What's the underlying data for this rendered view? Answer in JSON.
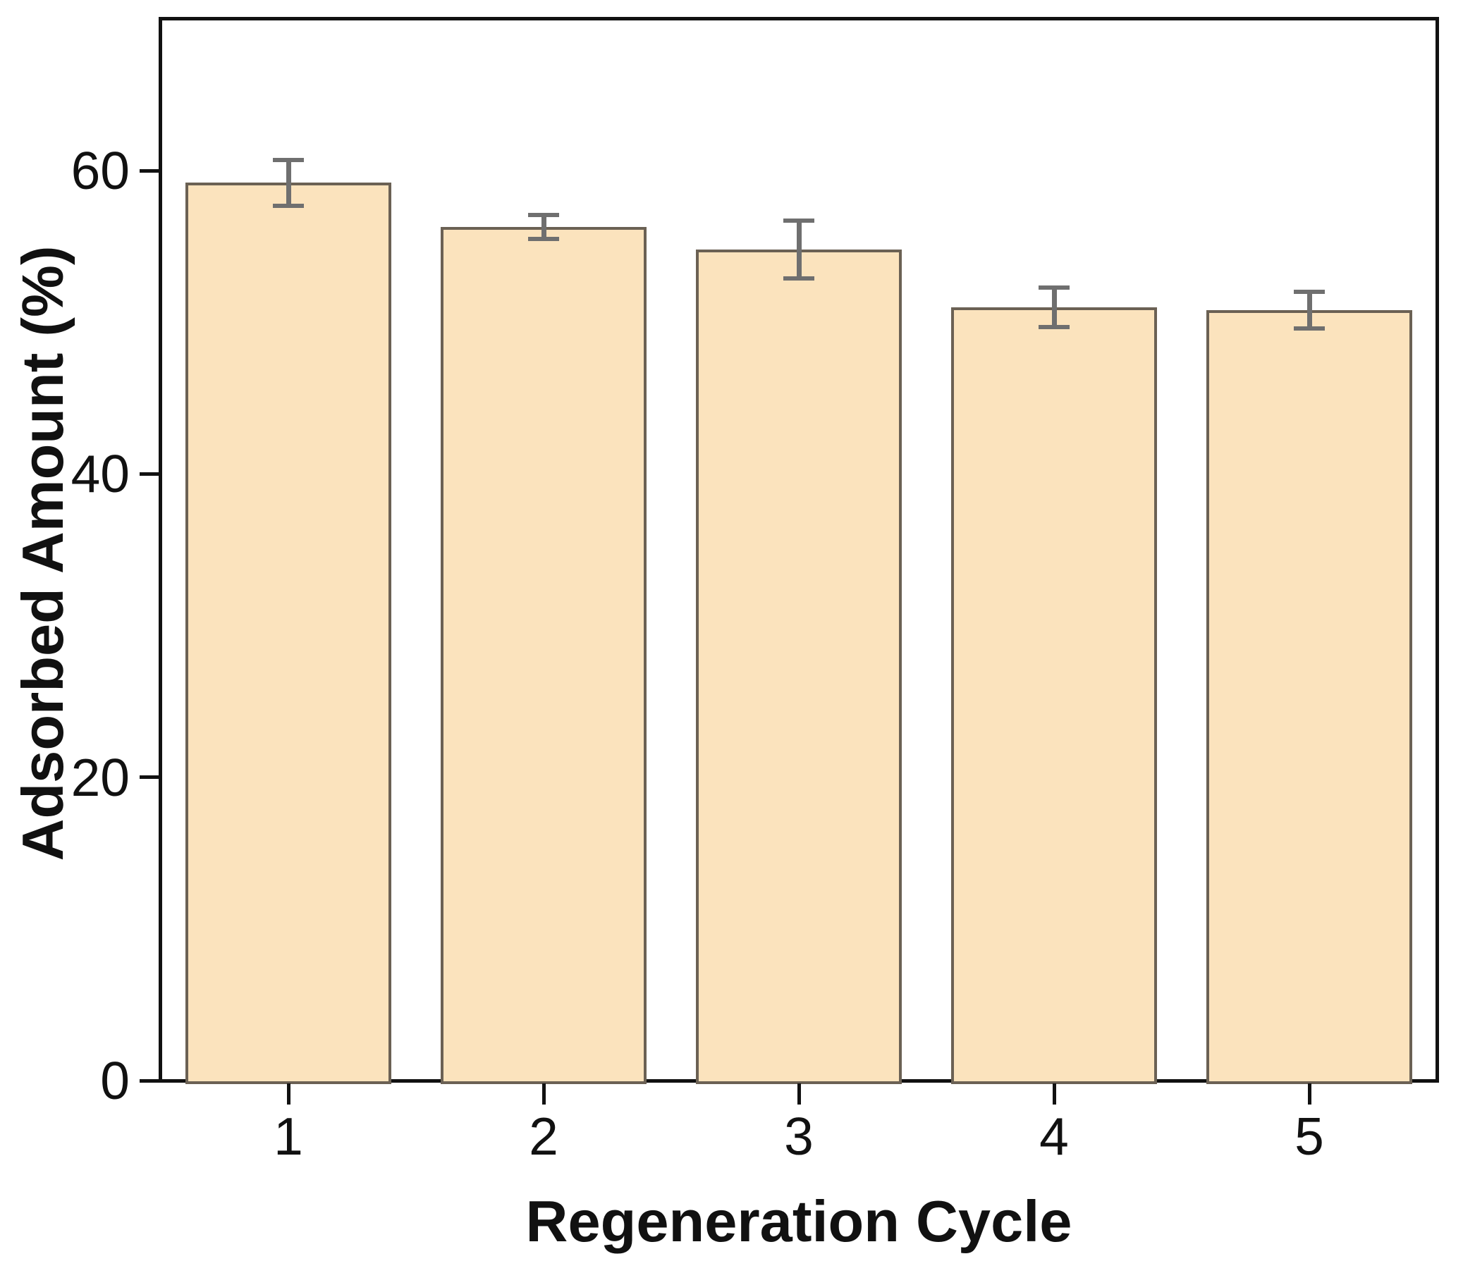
{
  "figure": {
    "background_color": "#ffffff",
    "axis_color": "#111111",
    "text_color": "#111111"
  },
  "chart_data": {
    "type": "bar",
    "title": "",
    "xlabel": "Regeneration Cycle",
    "ylabel": "Adsorbed Amount (%)",
    "categories": [
      "1",
      "2",
      "3",
      "4",
      "5"
    ],
    "values": [
      59.2,
      56.3,
      54.8,
      51.0,
      50.8
    ],
    "error_bars": [
      1.5,
      0.8,
      1.9,
      1.3,
      1.2
    ],
    "ylim": [
      0,
      70
    ],
    "yticks": [
      0,
      20,
      40,
      60
    ],
    "xlim_categories": [
      0.5,
      5.5
    ],
    "grid": false,
    "legend": null,
    "bar_fill_color": "#fbe3bd",
    "bar_edge_color": "#6b6154",
    "error_bar_color": "#6f6f6f",
    "tick_direction": "out"
  }
}
